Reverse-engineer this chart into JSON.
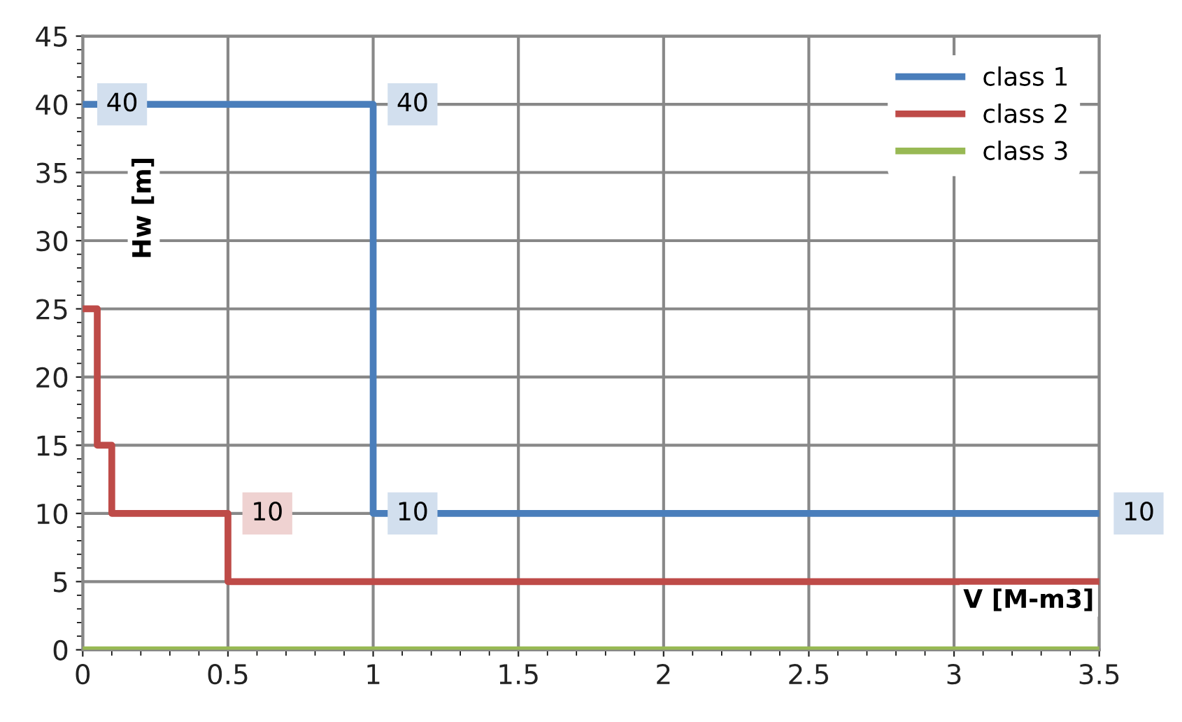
{
  "chart_data": {
    "type": "line",
    "xlabel": "V [M-m3]",
    "ylabel": "Hw [m]",
    "xlim": [
      0,
      3.5
    ],
    "xticks": [
      0,
      0.5,
      1,
      1.5,
      2,
      2.5,
      3,
      3.5
    ],
    "ylim": [
      0,
      45
    ],
    "yticks": [
      0,
      5,
      10,
      15,
      20,
      25,
      30,
      35,
      40,
      45
    ],
    "grid": true,
    "legend": "top right",
    "marker": "none",
    "line_style": "solid",
    "series": [
      {
        "name": "class 1",
        "color": "#4a7ebb",
        "x": [
          0,
          1,
          1,
          3.5
        ],
        "values": [
          40,
          40,
          10,
          10
        ],
        "value_labels": [
          "40",
          "40",
          "10",
          "10"
        ]
      },
      {
        "name": "class 2",
        "color": "#be4b48",
        "x": [
          0,
          0.05,
          0.05,
          0.1,
          0.1,
          0.5,
          0.5,
          3.5
        ],
        "values": [
          25,
          25,
          15,
          15,
          10,
          10,
          5,
          5
        ],
        "value_labels": [
          null,
          null,
          null,
          null,
          null,
          "10",
          null,
          null
        ]
      },
      {
        "name": "class 3",
        "color": "#98b954",
        "x": [
          0,
          3.5
        ],
        "values": [
          0,
          0
        ]
      }
    ]
  }
}
